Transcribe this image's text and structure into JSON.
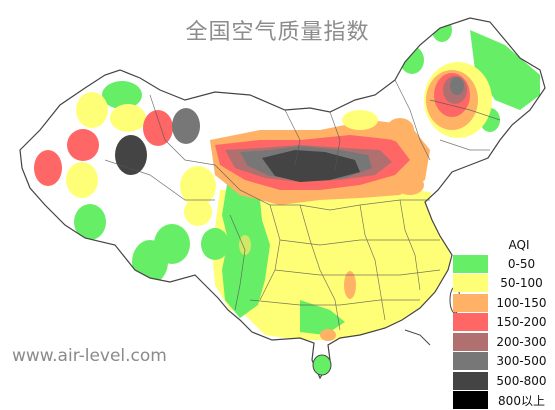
{
  "title": "全国空气质量指数",
  "watermark": "www.air-level.com",
  "legend": {
    "title": "AQI",
    "items": [
      {
        "label": "0-50",
        "color": "#66ee66"
      },
      {
        "label": "50-100",
        "color": "#ffff77"
      },
      {
        "label": "100-150",
        "color": "#ffb266"
      },
      {
        "label": "150-200",
        "color": "#ff6666"
      },
      {
        "label": "200-300",
        "color": "#b07070"
      },
      {
        "label": "300-500",
        "color": "#777777"
      },
      {
        "label": "500-800",
        "color": "#444444"
      },
      {
        "label": "800以上",
        "color": "#000000"
      }
    ]
  },
  "map": {
    "region": "China",
    "color_key": "AQI",
    "patches": [
      {
        "name": "northeast-cluster",
        "level": "300-500"
      },
      {
        "name": "north-china-belt",
        "level": "500-800"
      },
      {
        "name": "xinjiang-west",
        "level": "500-800"
      },
      {
        "name": "xinjiang-mid",
        "level": "300-500"
      },
      {
        "name": "southeast-region",
        "level": "50-100"
      }
    ]
  }
}
